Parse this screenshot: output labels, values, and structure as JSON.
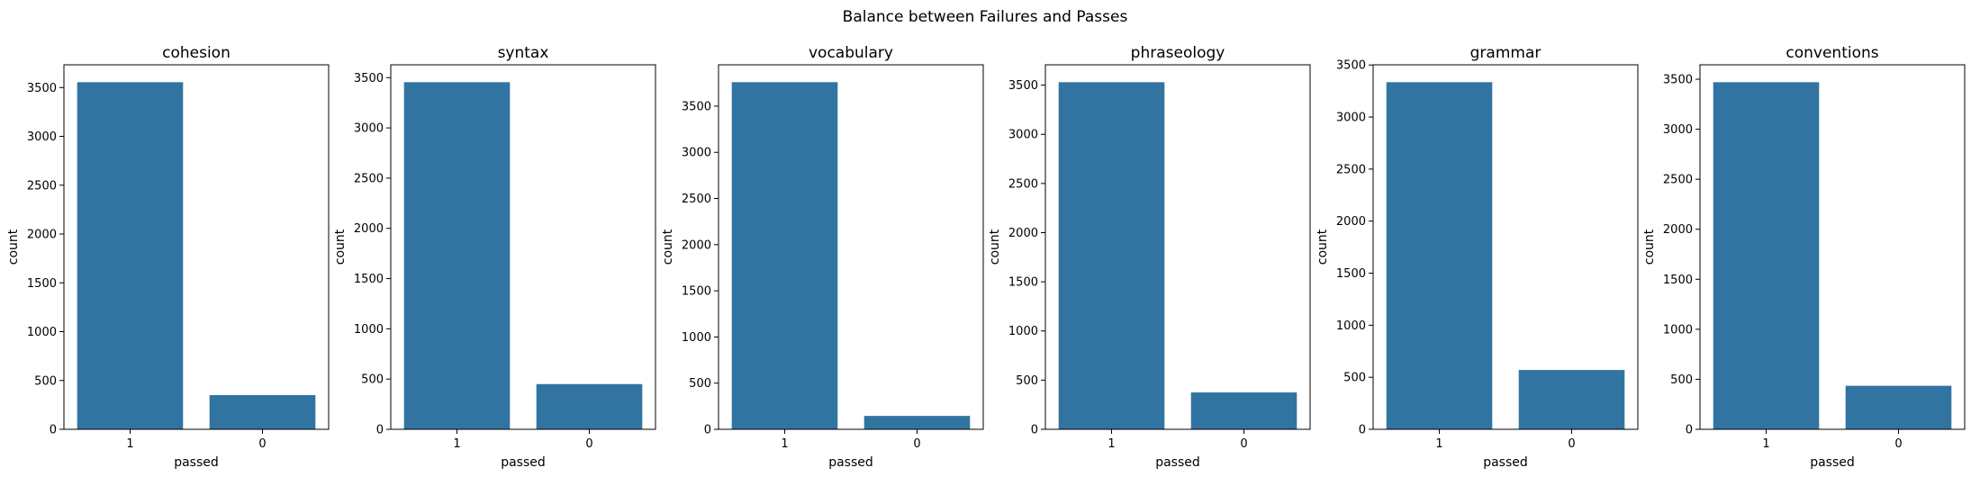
{
  "figure_title": "Balance between Failures and Passes",
  "colors": {
    "bar": "#3274a1",
    "axis": "#000000",
    "background": "#ffffff"
  },
  "chart_data": [
    {
      "type": "bar",
      "title": "cohesion",
      "xlabel": "passed",
      "ylabel": "count",
      "categories": [
        "1",
        "0"
      ],
      "values": [
        3555,
        350
      ],
      "ylim": [
        0,
        3733
      ],
      "yticks": [
        0,
        500,
        1000,
        1500,
        2000,
        2500,
        3000,
        3500
      ],
      "grid": false
    },
    {
      "type": "bar",
      "title": "syntax",
      "xlabel": "passed",
      "ylabel": "count",
      "categories": [
        "1",
        "0"
      ],
      "values": [
        3455,
        450
      ],
      "ylim": [
        0,
        3628
      ],
      "yticks": [
        0,
        500,
        1000,
        1500,
        2000,
        2500,
        3000,
        3500
      ],
      "grid": false
    },
    {
      "type": "bar",
      "title": "vocabulary",
      "xlabel": "passed",
      "ylabel": "count",
      "categories": [
        "1",
        "0"
      ],
      "values": [
        3760,
        145
      ],
      "ylim": [
        0,
        3948
      ],
      "yticks": [
        0,
        500,
        1000,
        1500,
        2000,
        2500,
        3000,
        3500
      ],
      "grid": false
    },
    {
      "type": "bar",
      "title": "phraseology",
      "xlabel": "passed",
      "ylabel": "count",
      "categories": [
        "1",
        "0"
      ],
      "values": [
        3530,
        375
      ],
      "ylim": [
        0,
        3707
      ],
      "yticks": [
        0,
        500,
        1000,
        1500,
        2000,
        2500,
        3000,
        3500
      ],
      "grid": false
    },
    {
      "type": "bar",
      "title": "grammar",
      "xlabel": "passed",
      "ylabel": "count",
      "categories": [
        "1",
        "0"
      ],
      "values": [
        3335,
        570
      ],
      "ylim": [
        0,
        3502
      ],
      "yticks": [
        0,
        500,
        1000,
        1500,
        2000,
        2500,
        3000,
        3500
      ],
      "grid": false
    },
    {
      "type": "bar",
      "title": "conventions",
      "xlabel": "passed",
      "ylabel": "count",
      "categories": [
        "1",
        "0"
      ],
      "values": [
        3470,
        435
      ],
      "ylim": [
        0,
        3644
      ],
      "yticks": [
        0,
        500,
        1000,
        1500,
        2000,
        2500,
        3000,
        3500
      ],
      "grid": false
    }
  ]
}
